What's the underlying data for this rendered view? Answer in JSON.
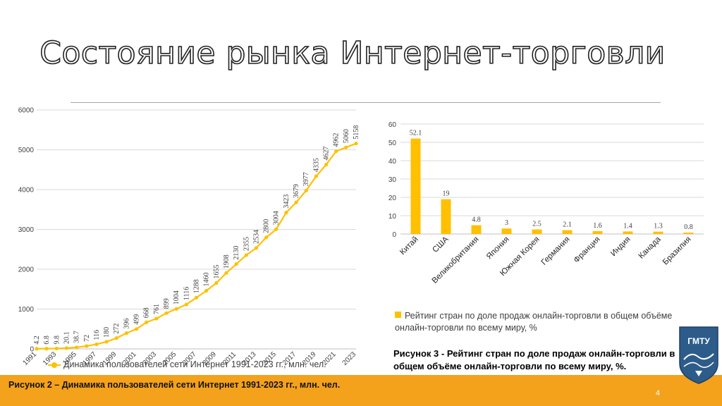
{
  "slide": {
    "title": "Состояние рынка Интернет-торговли",
    "page_number": "4",
    "logo_text": "ГМТУ"
  },
  "captions": {
    "figure2": "Рисунок 2 – Динамика пользователей сети Интернет 1991-2023 гг., млн. чел.",
    "figure3": "Рисунок 3 - Рейтинг стран по доле продаж онлайн-торговли в общем объёме онлайн-торговли по всему миру, %."
  },
  "colors": {
    "series": "#ffc000",
    "footer": "#f4a11c",
    "grid": "#d9d9d9"
  },
  "chart_data": [
    {
      "type": "line",
      "title": "",
      "xlabel": "",
      "ylabel": "",
      "ylim": [
        0,
        6000
      ],
      "yticks": [
        0,
        1000,
        2000,
        3000,
        4000,
        5000,
        6000
      ],
      "x": [
        1991,
        1992,
        1993,
        1994,
        1995,
        1996,
        1997,
        1998,
        1999,
        2000,
        2001,
        2002,
        2003,
        2004,
        2005,
        2006,
        2007,
        2008,
        2009,
        2010,
        2011,
        2012,
        2013,
        2014,
        2015,
        2016,
        2017,
        2018,
        2019,
        2020,
        2021,
        2022,
        2023
      ],
      "xtick_labels": [
        "1991",
        "1993",
        "1995",
        "1997",
        "1999",
        "2001",
        "2003",
        "2005",
        "2007",
        "2009",
        "2011",
        "2013",
        "2015",
        "2017",
        "2019",
        "2021",
        "2023"
      ],
      "series": [
        {
          "name": "Динамика пользователей сети Интернет 1991-2023 гг., млн. чел.",
          "values": [
            4.2,
            6.8,
            9.8,
            20.1,
            38.7,
            72,
            116,
            180,
            272,
            396,
            499,
            668,
            761,
            899,
            1004,
            1116,
            1288,
            1460,
            1655,
            1908,
            2130,
            2355,
            2534,
            2800,
            3004,
            3423,
            3679,
            3977,
            4335,
            4627,
            4962,
            5060,
            5158
          ],
          "labels": [
            "4.2",
            "6.8",
            "9.8",
            "20.1",
            "38.7",
            "72",
            "116",
            "180",
            "272",
            "396",
            "499",
            "668",
            "761",
            "899",
            "1004",
            "1116",
            "1288",
            "1460",
            "1655",
            "1908",
            "2130",
            "2355",
            "2534",
            "2800",
            "3004",
            "3423",
            "3679",
            "3977",
            "4335",
            "4627",
            "4962",
            "5060",
            "5158"
          ]
        }
      ],
      "grid": true,
      "legend": "bottom"
    },
    {
      "type": "bar",
      "title": "",
      "xlabel": "",
      "ylabel": "",
      "ylim": [
        0,
        60
      ],
      "yticks": [
        0,
        10,
        20,
        30,
        40,
        50,
        60
      ],
      "categories": [
        "Китай",
        "США",
        "Великобритания",
        "Япония",
        "Южная Корея",
        "Германия",
        "Франция",
        "Индия",
        "Канада",
        "Бразилия"
      ],
      "series": [
        {
          "name": "Рейтинг стран по доле продаж онлайн-торговли в общем объёме онлайн-торговли  по всему миру, %",
          "values": [
            52.1,
            19,
            4.8,
            3,
            2.5,
            2.1,
            1.6,
            1.4,
            1.3,
            0.8
          ],
          "labels": [
            "52.1",
            "19",
            "4.8",
            "3",
            "2.5",
            "2.1",
            "1.6",
            "1.4",
            "1.3",
            "0.8"
          ]
        }
      ],
      "grid": true,
      "legend": "bottom"
    }
  ]
}
